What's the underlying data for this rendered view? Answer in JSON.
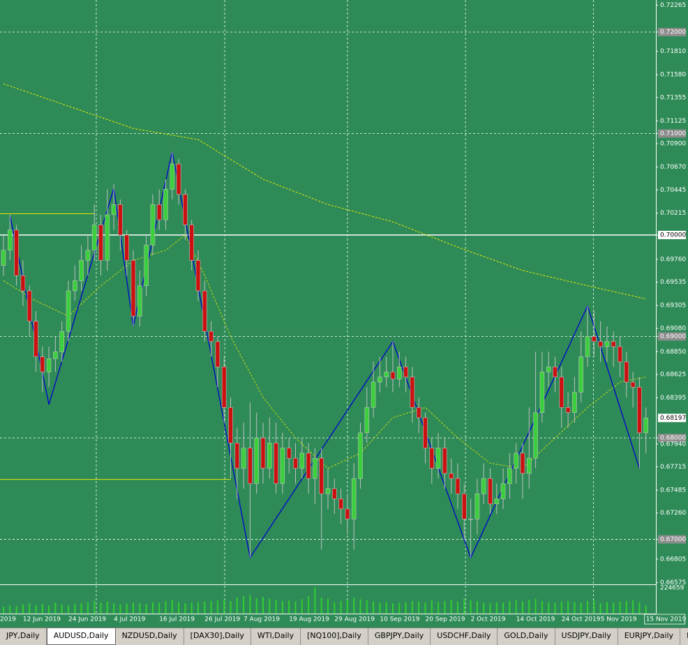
{
  "tabs": [
    "JPY,Daily",
    "AUDUSD,Daily",
    "NZDUSD,Daily",
    "[DAX30],Daily",
    "WTI,Daily",
    "[NQ100],Daily",
    "GBPJPY,Daily",
    "USDCHF,Daily",
    "GOLD,Daily",
    "USDJPY,Daily",
    "EURJPY,Daily",
    "EURUS"
  ],
  "active_tab": 1,
  "chart_data": {
    "type": "candlestick",
    "background": "#2e8b57",
    "up_color": "#3ccf3c",
    "down_color": "#cc1010",
    "wick_color": "#c0c0c0",
    "clipped_date_label": "2019",
    "categories": [
      null,
      null,
      null,
      "12 Jun 2019",
      null,
      null,
      null,
      null,
      null,
      null,
      "24 Jun 2019",
      null,
      null,
      null,
      null,
      null,
      null,
      "4 Jul 2019",
      null,
      null,
      null,
      null,
      null,
      null,
      "16 Jul 2019",
      null,
      null,
      null,
      null,
      null,
      null,
      "26 Jul 2019",
      null,
      null,
      null,
      null,
      null,
      "7 Aug 2019",
      null,
      null,
      null,
      null,
      null,
      null,
      "19 Aug 2019",
      null,
      null,
      null,
      null,
      null,
      null,
      "29 Aug 2019",
      null,
      null,
      null,
      null,
      null,
      null,
      "10 Sep 2019",
      null,
      null,
      null,
      null,
      null,
      null,
      "20 Sep 2019",
      null,
      null,
      null,
      null,
      null,
      null,
      "2 Oct 2019",
      null,
      null,
      null,
      null,
      null,
      null,
      "14 Oct 2019",
      null,
      null,
      null,
      null,
      null,
      null,
      "24 Oct 2019",
      null,
      null,
      null,
      null,
      null,
      "5 Nov 2019",
      null,
      null,
      null,
      null,
      null,
      null,
      "15 Nov 2019"
    ],
    "open": [
      0.697,
      0.6985,
      0.7005,
      0.696,
      0.6945,
      0.6915,
      0.688,
      0.6865,
      0.6878,
      0.6885,
      0.6905,
      0.6945,
      0.6955,
      0.6975,
      0.6985,
      0.701,
      0.6975,
      0.702,
      0.703,
      0.7,
      0.6975,
      0.692,
      0.695,
      0.699,
      0.703,
      0.7015,
      0.7045,
      0.707,
      0.704,
      0.701,
      0.6975,
      0.6945,
      0.6905,
      0.6895,
      0.687,
      0.683,
      0.6795,
      0.677,
      0.679,
      0.6755,
      0.68,
      0.677,
      0.6795,
      0.6755,
      0.679,
      0.678,
      0.677,
      0.6785,
      0.676,
      0.678,
      0.6745,
      0.675,
      0.674,
      0.673,
      0.672,
      0.676,
      0.6805,
      0.683,
      0.6855,
      0.686,
      0.6865,
      0.6858,
      0.687,
      0.686,
      0.683,
      0.682,
      0.679,
      0.677,
      0.679,
      0.6765,
      0.676,
      0.6745,
      0.672,
      0.672,
      0.6745,
      0.676,
      0.6735,
      0.674,
      0.6755,
      0.677,
      0.6785,
      0.6765,
      0.678,
      0.6825,
      0.6865,
      0.687,
      0.686,
      0.683,
      0.6825,
      0.6845,
      0.688,
      0.69,
      0.6895,
      0.689,
      0.6895,
      0.689,
      0.6875,
      0.6855,
      0.685,
      0.6805
    ],
    "high": [
      0.7,
      0.702,
      0.701,
      0.6975,
      0.695,
      0.6925,
      0.689,
      0.689,
      0.69,
      0.6915,
      0.6955,
      0.697,
      0.699,
      0.7,
      0.703,
      0.702,
      0.7045,
      0.705,
      0.7035,
      0.7005,
      0.6985,
      0.6965,
      0.7,
      0.704,
      0.7045,
      0.7055,
      0.7082,
      0.7075,
      0.7045,
      0.7015,
      0.6985,
      0.6955,
      0.6915,
      0.69,
      0.688,
      0.684,
      0.681,
      0.6815,
      0.6835,
      0.6825,
      0.6815,
      0.682,
      0.6815,
      0.6805,
      0.68,
      0.6795,
      0.68,
      0.6795,
      0.679,
      0.679,
      0.677,
      0.676,
      0.675,
      0.6745,
      0.6775,
      0.6815,
      0.685,
      0.6875,
      0.688,
      0.688,
      0.6895,
      0.6885,
      0.688,
      0.687,
      0.684,
      0.6825,
      0.68,
      0.6805,
      0.68,
      0.678,
      0.6775,
      0.6755,
      0.674,
      0.676,
      0.6775,
      0.677,
      0.6755,
      0.677,
      0.6785,
      0.6795,
      0.6795,
      0.683,
      0.6885,
      0.6885,
      0.6885,
      0.688,
      0.687,
      0.6845,
      0.686,
      0.6905,
      0.693,
      0.6925,
      0.6915,
      0.691,
      0.6905,
      0.69,
      0.6885,
      0.6865,
      0.686,
      0.683
    ],
    "low": [
      0.696,
      0.6975,
      0.695,
      0.693,
      0.69,
      0.6865,
      0.6845,
      0.685,
      0.6865,
      0.6875,
      0.6895,
      0.6935,
      0.6945,
      0.696,
      0.6975,
      0.696,
      0.6965,
      0.7005,
      0.6985,
      0.696,
      0.691,
      0.691,
      0.694,
      0.698,
      0.7005,
      0.7005,
      0.7035,
      0.703,
      0.6995,
      0.6965,
      0.6935,
      0.6895,
      0.688,
      0.685,
      0.6815,
      0.676,
      0.674,
      0.675,
      0.6682,
      0.6745,
      0.6755,
      0.676,
      0.6745,
      0.6745,
      0.6765,
      0.6755,
      0.676,
      0.6745,
      0.6735,
      0.669,
      0.673,
      0.6725,
      0.6715,
      0.6705,
      0.669,
      0.675,
      0.6795,
      0.682,
      0.6845,
      0.685,
      0.6845,
      0.685,
      0.6845,
      0.6815,
      0.6805,
      0.6775,
      0.6755,
      0.676,
      0.675,
      0.6745,
      0.673,
      0.67,
      0.6682,
      0.6705,
      0.6735,
      0.6725,
      0.6725,
      0.673,
      0.674,
      0.6755,
      0.674,
      0.675,
      0.677,
      0.6815,
      0.685,
      0.6845,
      0.681,
      0.681,
      0.6815,
      0.6835,
      0.687,
      0.688,
      0.6875,
      0.6875,
      0.687,
      0.686,
      0.684,
      0.683,
      0.677,
      0.6785
    ],
    "close": [
      0.6985,
      0.7005,
      0.696,
      0.6945,
      0.6915,
      0.688,
      0.6865,
      0.6878,
      0.6885,
      0.6905,
      0.6945,
      0.6955,
      0.6975,
      0.6985,
      0.701,
      0.6975,
      0.702,
      0.703,
      0.7,
      0.6975,
      0.692,
      0.695,
      0.699,
      0.703,
      0.7015,
      0.7045,
      0.707,
      0.704,
      0.701,
      0.6975,
      0.6945,
      0.6905,
      0.6895,
      0.687,
      0.683,
      0.6795,
      0.677,
      0.679,
      0.6755,
      0.68,
      0.677,
      0.6795,
      0.6755,
      0.679,
      0.678,
      0.677,
      0.6785,
      0.676,
      0.678,
      0.6745,
      0.675,
      0.674,
      0.673,
      0.672,
      0.676,
      0.6805,
      0.683,
      0.6855,
      0.686,
      0.6865,
      0.6858,
      0.687,
      0.686,
      0.683,
      0.682,
      0.679,
      0.677,
      0.679,
      0.6765,
      0.676,
      0.6745,
      0.672,
      0.672,
      0.6745,
      0.676,
      0.6735,
      0.674,
      0.6755,
      0.677,
      0.6785,
      0.6765,
      0.678,
      0.6825,
      0.6865,
      0.687,
      0.686,
      0.683,
      0.6825,
      0.6845,
      0.688,
      0.69,
      0.6895,
      0.689,
      0.6895,
      0.689,
      0.6875,
      0.6855,
      0.685,
      0.6805,
      0.68197
    ],
    "ylim": [
      0.66557,
      0.72316
    ],
    "yticks": [
      0.72265,
      {
        "value": 0.72,
        "label": "0.72000",
        "grid": true
      },
      {
        "value": 0.7181,
        "label": "0.71810"
      },
      {
        "value": 0.7158,
        "label": "0.71580"
      },
      0.71355,
      0.71125,
      {
        "value": 0.71,
        "label": "0.71000",
        "grid": true
      },
      {
        "value": 0.709,
        "label": "0.70900"
      },
      {
        "value": 0.7067,
        "label": "0.70670"
      },
      0.70445,
      0.70215,
      {
        "value": 0.7,
        "label": "0.70000",
        "level": true
      },
      {
        "value": 0.6976,
        "label": "0.69760"
      },
      0.69535,
      0.69305,
      {
        "value": 0.6908,
        "label": "0.69080"
      },
      {
        "value": 0.69,
        "label": "0.69000",
        "grid": true
      },
      {
        "value": 0.6885,
        "label": "0.68850"
      },
      0.68625,
      0.68395,
      {
        "value": 0.68,
        "label": "0.68000",
        "grid": true
      },
      {
        "value": 0.6794,
        "label": "0.67940"
      },
      0.67715,
      0.67485,
      {
        "value": 0.6726,
        "label": "0.67260"
      },
      {
        "value": 0.67,
        "label": "0.67000",
        "grid": true
      },
      0.66805,
      0.66575
    ],
    "xgrid": [
      14.3,
      34.1,
      53,
      71.2,
      90.9
    ],
    "lines": [
      {
        "color": "#e8e800",
        "dash": true,
        "width": 1,
        "x": [
          0,
          10,
          20,
          30,
          40,
          50,
          60,
          70,
          80,
          90,
          99
        ],
        "values": [
          0.7149,
          0.7127,
          0.7105,
          0.7094,
          0.7055,
          0.703,
          0.7013,
          0.6988,
          0.6965,
          0.695,
          0.6937
        ]
      },
      {
        "color": "#e8e800",
        "dash": true,
        "width": 0.8,
        "x": [
          0,
          5,
          10,
          15,
          20,
          25,
          28,
          31,
          35,
          40,
          45,
          50,
          55,
          60,
          65,
          70,
          75,
          80,
          85,
          90,
          95,
          99
        ],
        "values": [
          0.6955,
          0.6935,
          0.692,
          0.695,
          0.6975,
          0.6985,
          0.7,
          0.696,
          0.69,
          0.684,
          0.68,
          0.677,
          0.6785,
          0.682,
          0.683,
          0.68,
          0.6775,
          0.677,
          0.68,
          0.683,
          0.6855,
          0.686
        ]
      },
      {
        "color": "#e8e800",
        "dash": false,
        "width": 1,
        "x": [
          -1,
          35
        ],
        "values": [
          0.6759,
          0.6759
        ]
      },
      {
        "color": "#e8e800",
        "dash": false,
        "width": 1,
        "x": [
          -1,
          14
        ],
        "values": [
          0.7021,
          0.7021
        ]
      },
      {
        "color": "#0000cd",
        "dash": false,
        "width": 1.3,
        "x": [
          1,
          7,
          17,
          20,
          26,
          38,
          60,
          72,
          90,
          98
        ],
        "values": [
          0.7019,
          0.6833,
          0.7046,
          0.691,
          0.7082,
          0.6682,
          0.6895,
          0.6682,
          0.693,
          0.677
        ]
      }
    ],
    "volume": {
      "color": "#32cd32",
      "ylim": [
        0,
        224659
      ],
      "yticks": [
        224659
      ],
      "values": [
        60000,
        70000,
        65000,
        80000,
        90000,
        75000,
        85000,
        70000,
        95000,
        80000,
        70000,
        85000,
        90000,
        100000,
        110000,
        95000,
        105000,
        90000,
        80000,
        85000,
        95000,
        90000,
        85000,
        100000,
        95000,
        110000,
        120000,
        100000,
        90000,
        95000,
        100000,
        105000,
        110000,
        115000,
        120000,
        110000,
        140000,
        150000,
        160000,
        135000,
        145000,
        130000,
        120000,
        110000,
        115000,
        105000,
        125000,
        150000,
        224659,
        140000,
        130000,
        100000,
        110000,
        120000,
        140000,
        125000,
        115000,
        105000,
        95000,
        100000,
        90000,
        95000,
        100000,
        110000,
        105000,
        95000,
        115000,
        100000,
        110000,
        120000,
        105000,
        130000,
        115000,
        110000,
        95000,
        90000,
        100000,
        95000,
        110000,
        115000,
        105000,
        120000,
        130000,
        110000,
        100000,
        95000,
        105000,
        110000,
        100000,
        95000,
        110000,
        115000,
        90000,
        100000,
        95000,
        105000,
        110000,
        120000,
        100000,
        70000
      ]
    }
  }
}
